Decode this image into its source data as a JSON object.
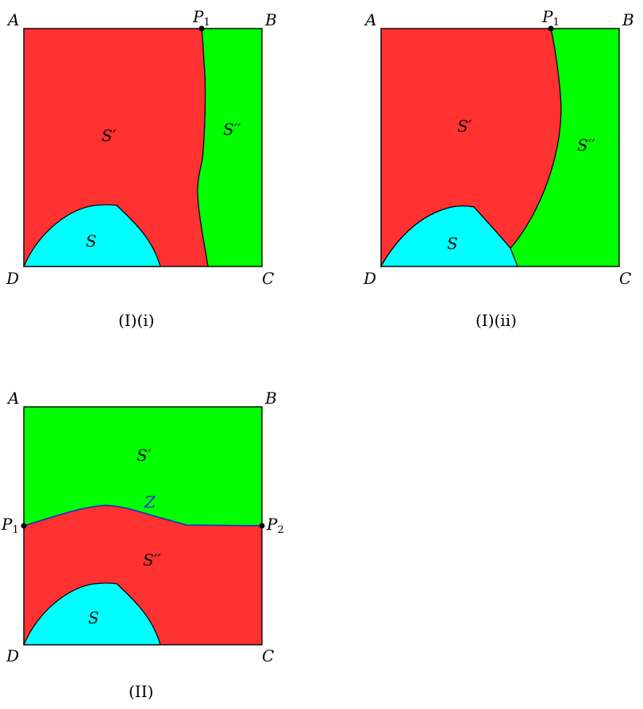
{
  "colors": {
    "red_region": "#ff3131",
    "green_region": "#00ff00",
    "cyan_region": "#00ffff",
    "outline": "#000000",
    "curve_z": "#1f2bd6"
  },
  "panels": [
    {
      "caption": "(I)(i)",
      "corners": {
        "a": "A",
        "b": "B",
        "c": "C",
        "d": "D"
      },
      "point": {
        "main": "P",
        "sub": "1"
      },
      "regions": {
        "s_prime": "S′",
        "s_double_prime": "S′′",
        "s": "S"
      }
    },
    {
      "caption": "(I)(ii)",
      "corners": {
        "a": "A",
        "b": "B",
        "c": "C",
        "d": "D"
      },
      "point": {
        "main": "P",
        "sub": "1"
      },
      "regions": {
        "s_prime": "S′",
        "s_double_prime": "S′′",
        "s": "S"
      }
    },
    {
      "caption": "(II)",
      "corners": {
        "a": "A",
        "b": "B",
        "c": "C",
        "d": "D"
      },
      "point_left": {
        "main": "P",
        "sub": "1"
      },
      "point_right": {
        "main": "P",
        "sub": "2"
      },
      "curve_label": "Z",
      "regions": {
        "s_prime": "S′",
        "s_double_prime": "S′′",
        "s": "S"
      }
    }
  ]
}
